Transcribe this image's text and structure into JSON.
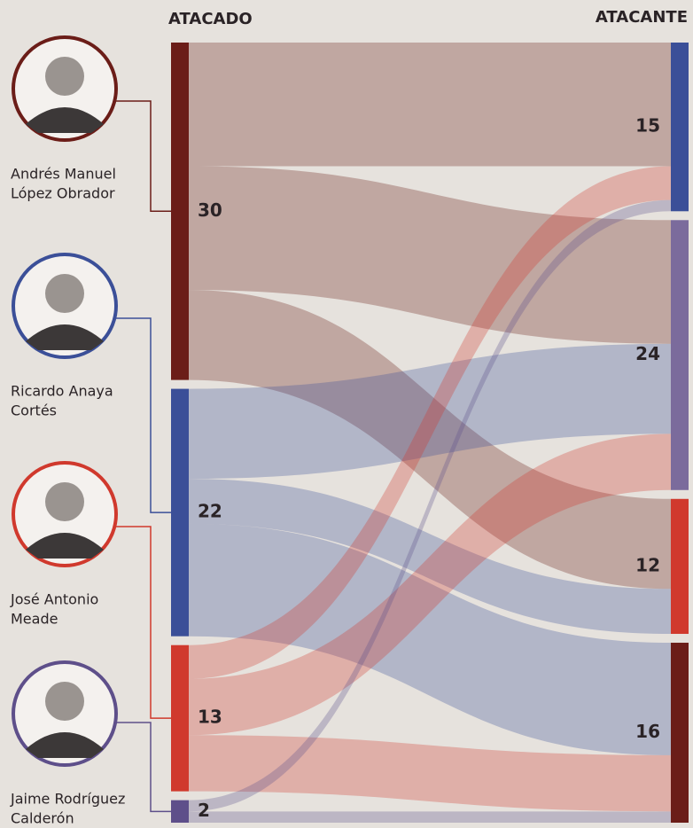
{
  "chart_data": {
    "type": "sankey",
    "left_label": "ATACADO",
    "right_label": "ATACANTE",
    "left_nodes": [
      {
        "name": [
          "Andrés Manuel",
          "López Obrador"
        ],
        "value": 30,
        "color": "#6b1d18"
      },
      {
        "name": [
          "Ricardo Anaya",
          "Cortés"
        ],
        "value": 22,
        "color": "#3b4f98"
      },
      {
        "name": [
          "José Antonio",
          "Meade"
        ],
        "value": 13,
        "color": "#d0392d"
      },
      {
        "name": [
          "Jaime Rodríguez",
          "Calderón"
        ],
        "value": 2,
        "color": "#5e4f8a"
      }
    ],
    "right_nodes": [
      {
        "value": 15,
        "color": "#3b4f98"
      },
      {
        "value": 24,
        "color": "#7b6b9c"
      },
      {
        "value": 12,
        "color": "#d0392d"
      },
      {
        "value": 16,
        "color": "#6b1d18"
      }
    ],
    "links": [
      {
        "source": 0,
        "target": 0,
        "value": 11
      },
      {
        "source": 0,
        "target": 1,
        "value": 11
      },
      {
        "source": 0,
        "target": 2,
        "value": 8
      },
      {
        "source": 1,
        "target": 1,
        "value": 8
      },
      {
        "source": 1,
        "target": 2,
        "value": 4
      },
      {
        "source": 1,
        "target": 3,
        "value": 10
      },
      {
        "source": 2,
        "target": 0,
        "value": 3
      },
      {
        "source": 2,
        "target": 1,
        "value": 5
      },
      {
        "source": 2,
        "target": 3,
        "value": 5
      },
      {
        "source": 3,
        "target": 0,
        "value": 1
      },
      {
        "source": 3,
        "target": 3,
        "value": 1
      }
    ]
  }
}
